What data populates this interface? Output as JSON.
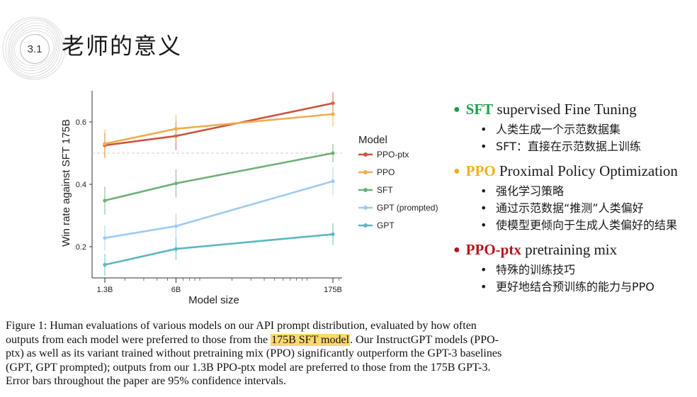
{
  "header": {
    "section_number": "3.1",
    "title": "老师的意义"
  },
  "chart_data": {
    "type": "line",
    "xlabel": "Model size",
    "ylabel": "Win rate against SFT 175B",
    "x_scale": "log",
    "categories": [
      "1.3B",
      "6B",
      "175B"
    ],
    "x_values": [
      1.3,
      6,
      175
    ],
    "yticks": [
      0.2,
      0.4,
      0.6
    ],
    "ylim": [
      0.1,
      0.7
    ],
    "reference_line": 0.5,
    "legend_title": "Model",
    "legend_position": "right",
    "series": [
      {
        "name": "PPO-ptx",
        "color": "#c8553d",
        "values": [
          0.525,
          0.555,
          0.66
        ],
        "err": [
          0.04,
          0.045,
          0.035
        ]
      },
      {
        "name": "PPO",
        "color": "#f0ad4e",
        "values": [
          0.53,
          0.578,
          0.625
        ],
        "err": [
          0.045,
          0.045,
          0.04
        ]
      },
      {
        "name": "SFT",
        "color": "#6eb078",
        "values": [
          0.348,
          0.403,
          0.5
        ],
        "err": [
          0.045,
          0.045,
          0.03
        ]
      },
      {
        "name": "GPT (prompted)",
        "color": "#9ecbf2",
        "values": [
          0.228,
          0.266,
          0.41
        ],
        "err": [
          0.04,
          0.04,
          0.045
        ]
      },
      {
        "name": "GPT",
        "color": "#5ab8c2",
        "values": [
          0.142,
          0.193,
          0.24
        ],
        "err": [
          0.035,
          0.035,
          0.035
        ]
      }
    ]
  },
  "bullets": [
    {
      "key": "SFT",
      "text": " supervised Fine Tuning",
      "color": "#1e9e4a",
      "subs": [
        "人类生成一个示范数据集",
        "SFT：直接在示范数据上训练"
      ]
    },
    {
      "key": "PPO",
      "text": " Proximal Policy Optimization",
      "color": "#f2b01e",
      "subs": [
        "强化学习策略",
        "通过示范数据“推测”人类偏好",
        "使模型更倾向于生成人类偏好的结果"
      ]
    },
    {
      "key": "PPO-ptx",
      "text": " pretraining mix",
      "color": "#b3161c",
      "subs": [
        "特殊的训练技巧",
        "更好地结合预训练的能力与PPO"
      ]
    }
  ],
  "caption": {
    "before": "Figure 1: Human evaluations of various models on our API prompt distribution, evaluated by how often outputs from each model were preferred to those from the ",
    "highlight": "175B SFT model",
    "after": ". Our InstructGPT models (PPO-ptx) as well as its variant trained without pretraining mix (PPO) significantly outperform the GPT-3 baselines (GPT, GPT prompted); outputs from our 1.3B PPO-ptx model are preferred to those from the 175B GPT-3. Error bars throughout the paper are 95% confidence intervals."
  },
  "colors": {
    "highlight": "#fbd86b"
  }
}
